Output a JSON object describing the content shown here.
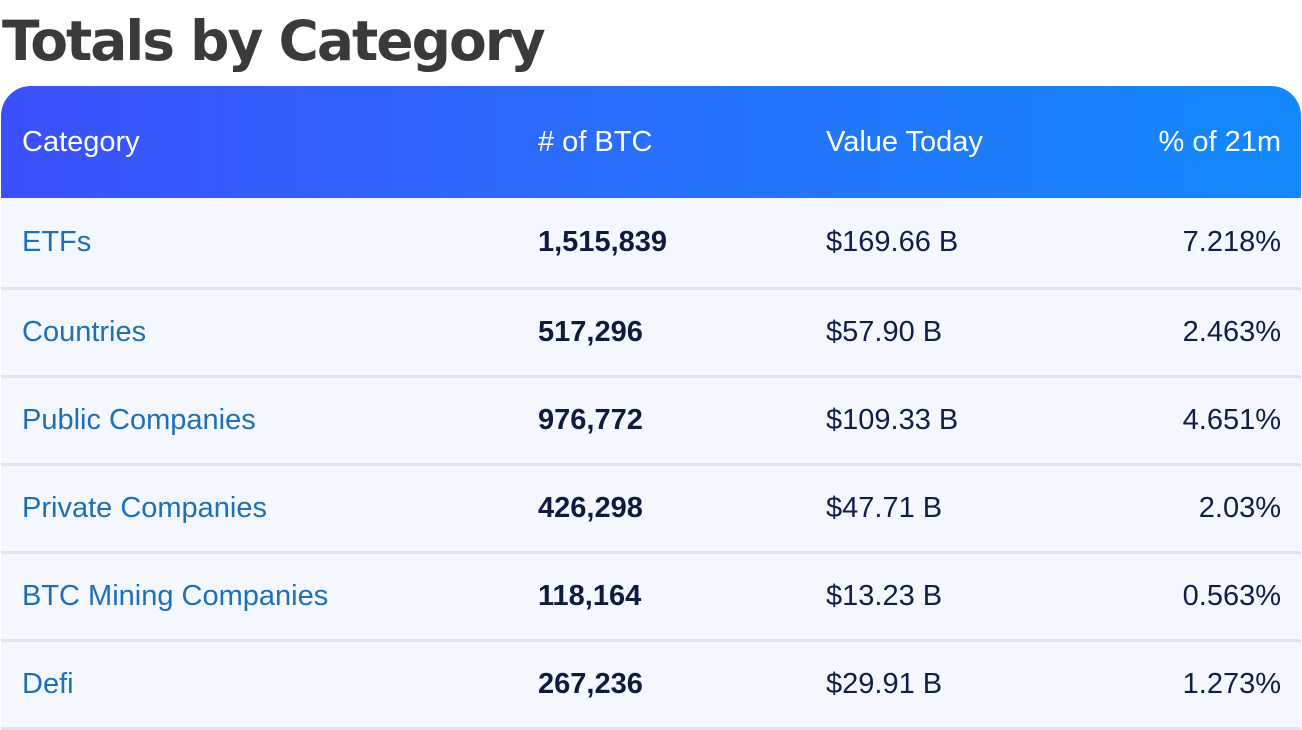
{
  "title": "Totals by Category",
  "table": {
    "headers": {
      "category": "Category",
      "btc": "# of BTC",
      "value": "Value Today",
      "percent": "% of 21m"
    },
    "rows": [
      {
        "category": "ETFs",
        "btc": "1,515,839",
        "value": "$169.66 B",
        "percent": "7.218%"
      },
      {
        "category": "Countries",
        "btc": "517,296",
        "value": "$57.90 B",
        "percent": "2.463%"
      },
      {
        "category": "Public Companies",
        "btc": "976,772",
        "value": "$109.33 B",
        "percent": "4.651%"
      },
      {
        "category": "Private Companies",
        "btc": "426,298",
        "value": "$47.71 B",
        "percent": "2.03%"
      },
      {
        "category": "BTC Mining Companies",
        "btc": "118,164",
        "value": "$13.23 B",
        "percent": "0.563%"
      },
      {
        "category": "Defi",
        "btc": "267,236",
        "value": "$29.91 B",
        "percent": "1.273%"
      }
    ]
  },
  "colors": {
    "header_gradient_start": "#3b4ffb",
    "header_gradient_end": "#1389fb",
    "link": "#1f6fb5",
    "row_background": "#f4f7fe"
  }
}
